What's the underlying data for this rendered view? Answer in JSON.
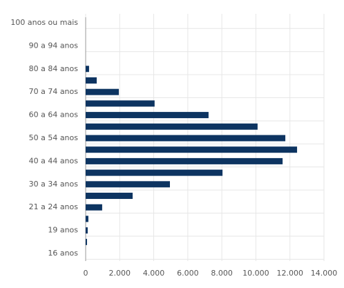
{
  "chart_data": {
    "type": "hbar",
    "categories": [
      "100 anos ou mais",
      null,
      "90 a 94 anos",
      null,
      "80 a 84 anos",
      null,
      "70 a 74 anos",
      null,
      "60 a 64 anos",
      null,
      "50 a 54 anos",
      null,
      "40 a 44 anos",
      null,
      "30 a 34 anos",
      null,
      "21 a 24 anos",
      null,
      "19 anos",
      null,
      "16 anos"
    ],
    "values": [
      0,
      0,
      0,
      0,
      200,
      650,
      1950,
      4050,
      7220,
      10100,
      11730,
      12420,
      11570,
      8040,
      4950,
      2760,
      970,
      160,
      120,
      80,
      0
    ],
    "color": "#0d3461",
    "xlim": [
      0,
      14000
    ],
    "xticks": [
      0,
      {
        "value": 2000,
        "label": "2.000"
      },
      {
        "value": 4000,
        "label": "4.000"
      },
      {
        "value": 6000,
        "label": "6.000"
      },
      {
        "value": 8000,
        "label": "8.000"
      },
      {
        "value": 10000,
        "label": "10.000"
      },
      {
        "value": 12000,
        "label": "12.000"
      },
      {
        "value": 14000,
        "label": "14.000"
      }
    ],
    "grid": true
  }
}
